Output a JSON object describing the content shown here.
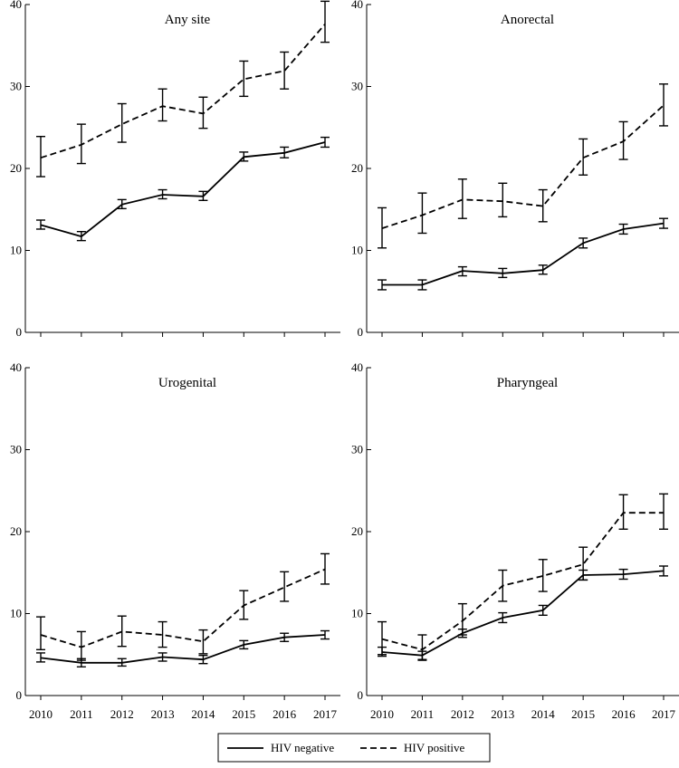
{
  "chart_data": [
    {
      "type": "line",
      "title": "Any site",
      "x": [
        2010,
        2011,
        2012,
        2013,
        2014,
        2015,
        2016,
        2017
      ],
      "ylim": [
        0,
        40
      ],
      "yticks": [
        0,
        10,
        20,
        30,
        40
      ],
      "series": [
        {
          "name": "HIV negative",
          "style": "solid",
          "values": [
            13.1,
            11.7,
            15.6,
            16.8,
            16.6,
            21.4,
            21.9,
            23.2
          ],
          "lower": [
            12.6,
            11.2,
            15.1,
            16.3,
            16.1,
            20.9,
            21.3,
            22.6
          ],
          "upper": [
            13.7,
            12.3,
            16.2,
            17.4,
            17.2,
            22.0,
            22.6,
            23.8
          ]
        },
        {
          "name": "HIV positive",
          "style": "dashed",
          "values": [
            21.3,
            22.9,
            25.4,
            27.6,
            26.7,
            30.9,
            31.9,
            37.6
          ],
          "lower": [
            19.0,
            20.6,
            23.2,
            25.8,
            24.9,
            28.8,
            29.7,
            35.4
          ],
          "upper": [
            23.9,
            25.4,
            27.9,
            29.7,
            28.7,
            33.1,
            34.2,
            40.4
          ]
        }
      ]
    },
    {
      "type": "line",
      "title": "Anorectal",
      "x": [
        2010,
        2011,
        2012,
        2013,
        2014,
        2015,
        2016,
        2017
      ],
      "ylim": [
        0,
        40
      ],
      "yticks": [
        0,
        10,
        20,
        30,
        40
      ],
      "series": [
        {
          "name": "HIV negative",
          "style": "solid",
          "values": [
            5.8,
            5.8,
            7.5,
            7.2,
            7.6,
            10.9,
            12.6,
            13.3
          ],
          "lower": [
            5.2,
            5.2,
            6.9,
            6.7,
            7.1,
            10.3,
            12.0,
            12.7
          ],
          "upper": [
            6.4,
            6.4,
            8.0,
            7.8,
            8.2,
            11.5,
            13.2,
            13.9
          ]
        },
        {
          "name": "HIV positive",
          "style": "dashed",
          "values": [
            12.7,
            14.3,
            16.2,
            16.0,
            15.4,
            21.3,
            23.3,
            27.7
          ],
          "lower": [
            10.3,
            12.1,
            13.9,
            14.1,
            13.5,
            19.2,
            21.1,
            25.2
          ],
          "upper": [
            15.2,
            17.0,
            18.7,
            18.2,
            17.4,
            23.6,
            25.7,
            30.3
          ]
        }
      ]
    },
    {
      "type": "line",
      "title": "Urogenital",
      "x": [
        2010,
        2011,
        2012,
        2013,
        2014,
        2015,
        2016,
        2017
      ],
      "ylim": [
        0,
        40
      ],
      "yticks": [
        0,
        10,
        20,
        30,
        40
      ],
      "series": [
        {
          "name": "HIV negative",
          "style": "solid",
          "values": [
            4.6,
            4.0,
            4.0,
            4.7,
            4.4,
            6.2,
            7.1,
            7.4
          ],
          "lower": [
            4.1,
            3.5,
            3.6,
            4.2,
            3.9,
            5.7,
            6.6,
            6.9
          ],
          "upper": [
            5.2,
            4.5,
            4.5,
            5.2,
            4.9,
            6.7,
            7.6,
            7.9
          ]
        },
        {
          "name": "HIV positive",
          "style": "dashed",
          "values": [
            7.4,
            5.9,
            7.8,
            7.4,
            6.6,
            11.0,
            13.2,
            15.4
          ],
          "lower": [
            5.6,
            4.3,
            6.0,
            5.9,
            5.1,
            9.3,
            11.5,
            13.6
          ],
          "upper": [
            9.6,
            7.8,
            9.7,
            9.0,
            8.0,
            12.8,
            15.1,
            17.3
          ]
        }
      ]
    },
    {
      "type": "line",
      "title": "Pharyngeal",
      "x": [
        2010,
        2011,
        2012,
        2013,
        2014,
        2015,
        2016,
        2017
      ],
      "ylim": [
        0,
        40
      ],
      "yticks": [
        0,
        10,
        20,
        30,
        40
      ],
      "series": [
        {
          "name": "HIV negative",
          "style": "solid",
          "values": [
            5.3,
            4.9,
            7.6,
            9.5,
            10.4,
            14.7,
            14.8,
            15.2
          ],
          "lower": [
            4.8,
            4.4,
            7.1,
            8.9,
            9.8,
            14.1,
            14.2,
            14.6
          ],
          "upper": [
            5.9,
            5.4,
            8.1,
            10.1,
            11.0,
            15.3,
            15.4,
            15.8
          ]
        },
        {
          "name": "HIV positive",
          "style": "dashed",
          "values": [
            6.9,
            5.6,
            9.1,
            13.4,
            14.6,
            16.0,
            22.3,
            22.3
          ],
          "lower": [
            5.0,
            4.3,
            7.4,
            11.5,
            12.7,
            14.1,
            20.3,
            20.3
          ],
          "upper": [
            9.0,
            7.4,
            11.2,
            15.3,
            16.6,
            18.1,
            24.5,
            24.6
          ]
        }
      ]
    }
  ],
  "legend": {
    "placement": "bottom-center",
    "items": [
      {
        "label": "HIV negative",
        "style": "solid"
      },
      {
        "label": "HIV positive",
        "style": "dashed"
      }
    ]
  }
}
